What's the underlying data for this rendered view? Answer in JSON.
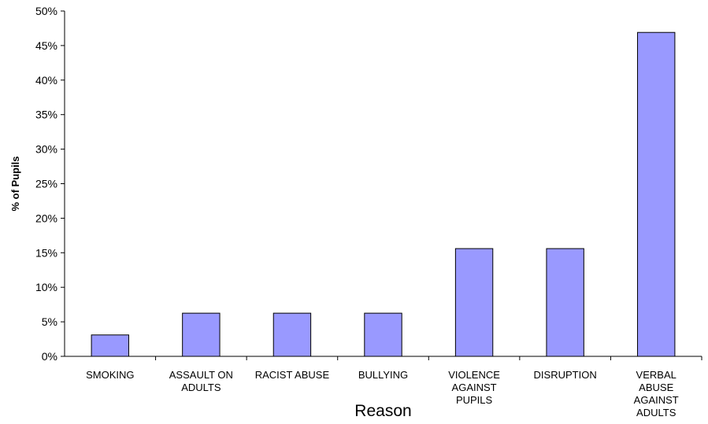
{
  "chart_data": {
    "type": "bar",
    "title": "",
    "xlabel": "Reason",
    "ylabel": "% of Pupils",
    "categories": [
      [
        "SMOKING"
      ],
      [
        "ASSAULT ON",
        "ADULTS"
      ],
      [
        "RACIST ABUSE"
      ],
      [
        "BULLYING"
      ],
      [
        "VIOLENCE",
        "AGAINST",
        "PUPILS"
      ],
      [
        "DISRUPTION"
      ],
      [
        "VERBAL",
        "ABUSE",
        "AGAINST",
        "ADULTS"
      ]
    ],
    "values": [
      3.1,
      6.25,
      6.25,
      6.25,
      15.6,
      15.6,
      46.9
    ],
    "ylim": [
      0,
      50
    ],
    "yticks": [
      0,
      5,
      10,
      15,
      20,
      25,
      30,
      35,
      40,
      45,
      50
    ],
    "ytick_suffix": "%",
    "grid": false,
    "legend": "none",
    "bar_color": "#9999ff"
  }
}
